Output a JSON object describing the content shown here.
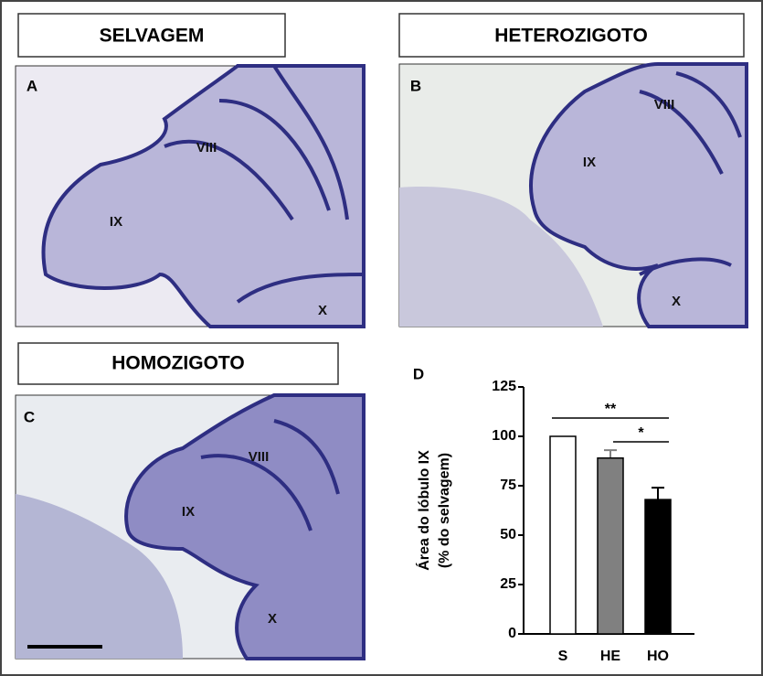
{
  "panels": [
    {
      "letter": "A",
      "title": "SELVAGEM",
      "labels": [
        "IX",
        "VIII",
        "X"
      ]
    },
    {
      "letter": "B",
      "title": "HETEROZIGOTO",
      "labels": [
        "IX",
        "VIII",
        "X"
      ]
    },
    {
      "letter": "C",
      "title": "HOMOZIGOTO",
      "labels": [
        "IX",
        "VIII",
        "X"
      ]
    }
  ],
  "chart_data": {
    "type": "bar",
    "label": "D",
    "ylabel": [
      "Área do lóbulo IX",
      "(% do selvagem)"
    ],
    "categories": [
      "S",
      "HE",
      "HO"
    ],
    "values": [
      100,
      89,
      68
    ],
    "errors": [
      null,
      4,
      6
    ],
    "colors": [
      "#ffffff",
      "#808080",
      "#000000"
    ],
    "ylim": [
      0,
      125
    ],
    "yticks": [
      0,
      25,
      50,
      75,
      100,
      125
    ],
    "annotations": [
      {
        "text": "**",
        "from": 0,
        "to": 2
      },
      {
        "text": "*",
        "from": 1,
        "to": 2
      }
    ]
  }
}
